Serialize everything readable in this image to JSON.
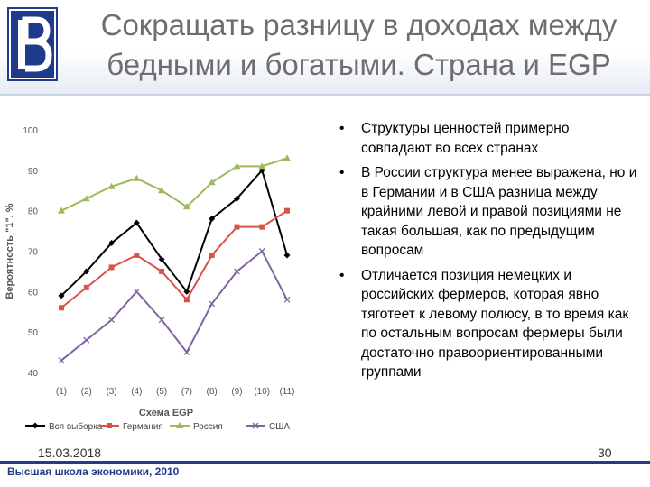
{
  "slide": {
    "title_line1": "Сокращать разницу в доходах между",
    "title_line2": "бедными и богатыми. Страна и EGP",
    "date": "15.03.2018",
    "page_number": "30",
    "footer": "Высшая школа экономики, 2010"
  },
  "bullets": [
    "Структуры ценностей примерно совпадают во всех странах",
    "В России структура менее выражена, но и в Германии и в США разница между крайними левой и правой позициями не такая большая, как по предыдущим вопросам",
    "Отличается позиция немецких и российских фермеров, которая явно тяготеет к левому полюсу, в то время как по остальным вопросам фермеры были достаточно правоориентированными группами"
  ],
  "colors": {
    "all": "#000000",
    "germany": "#d9534a",
    "russia": "#9bbb59",
    "usa": "#8064a2",
    "title": "#6e6e6e",
    "footer": "#1f3a8a"
  },
  "chart_data": {
    "type": "line",
    "xlabel": "Схема EGP",
    "ylabel": "Вероятность \"1\", %",
    "categories": [
      "(1)",
      "(2)",
      "(3)",
      "(4)",
      "(5)",
      "(7)",
      "(8)",
      "(9)",
      "(10)",
      "(11)"
    ],
    "ylim": [
      40,
      100
    ],
    "yticks": [
      "40",
      "50",
      "60",
      "70",
      "80",
      "90",
      "100"
    ],
    "grid": false,
    "legend_position": "bottom",
    "series": [
      {
        "name": "Вся выборка",
        "marker": "diamond",
        "values": [
          59,
          65,
          72,
          77,
          68,
          60,
          78,
          83,
          90,
          69
        ]
      },
      {
        "name": "Германия",
        "marker": "square",
        "values": [
          56,
          61,
          66,
          69,
          65,
          58,
          69,
          76,
          76,
          80
        ]
      },
      {
        "name": "Россия",
        "marker": "triangle",
        "values": [
          80,
          83,
          86,
          88,
          85,
          81,
          87,
          91,
          91,
          93
        ]
      },
      {
        "name": "США",
        "marker": "x",
        "values": [
          43,
          48,
          53,
          60,
          53,
          45,
          57,
          65,
          70,
          58
        ]
      }
    ]
  }
}
